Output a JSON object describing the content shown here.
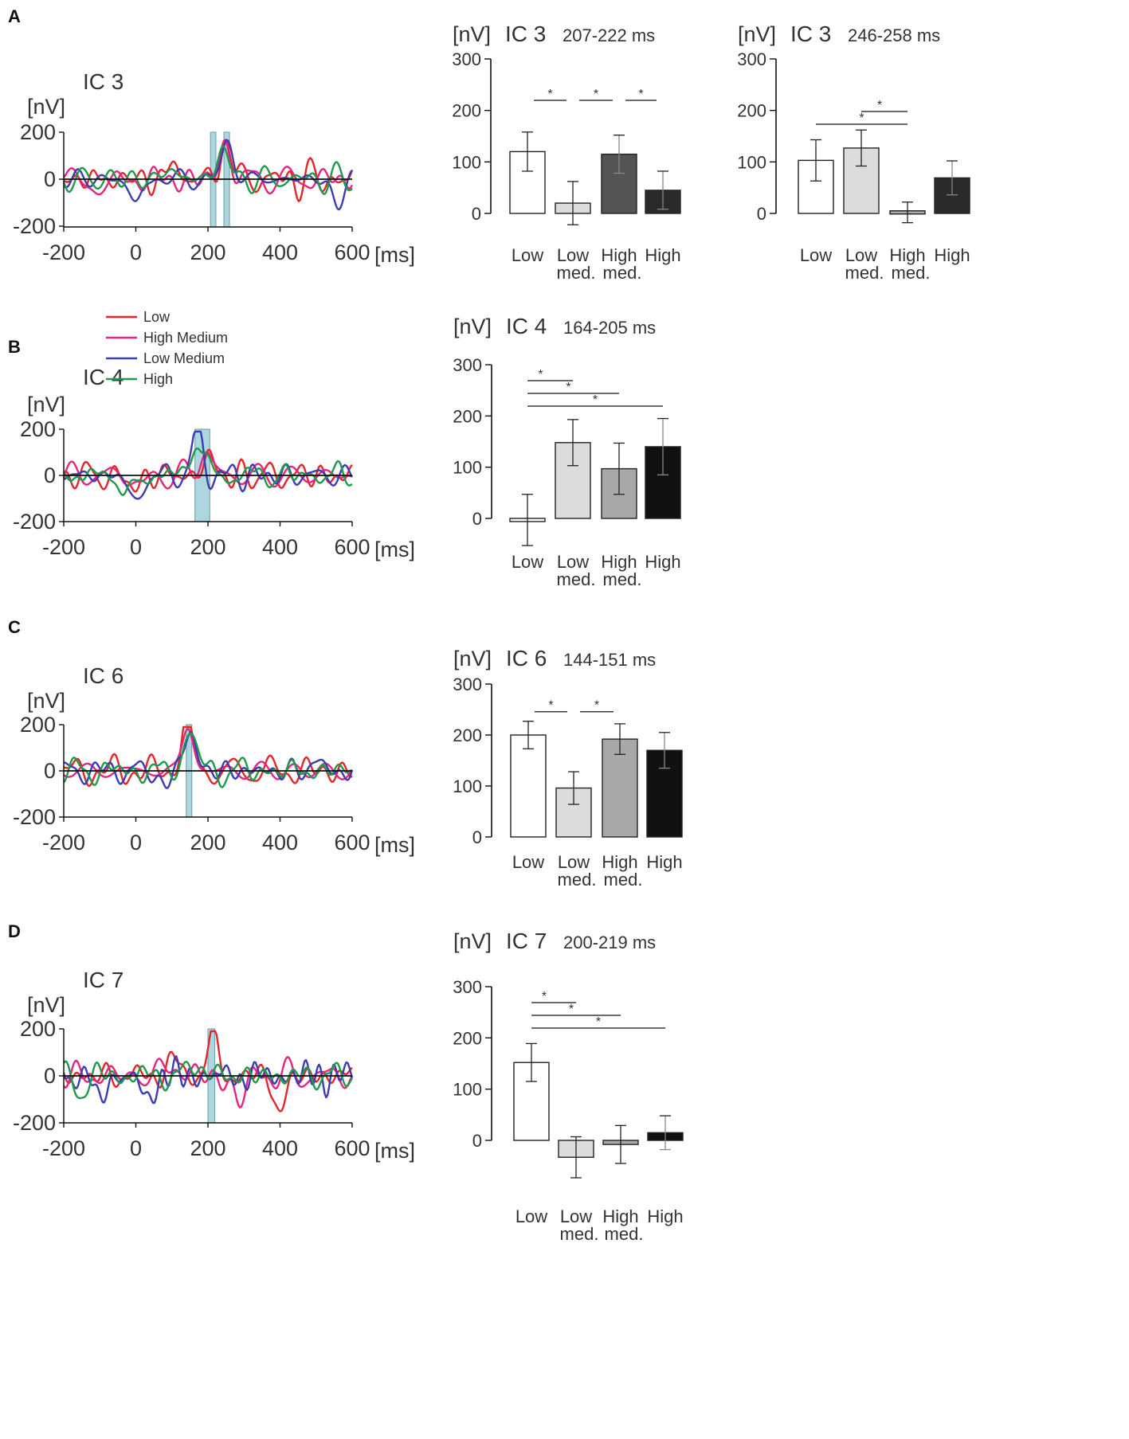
{
  "figure": {
    "panels": [
      {
        "letter": "A",
        "wave": "ic3",
        "bars": [
          "ic3a",
          "ic3b"
        ]
      },
      {
        "letter": "B",
        "wave": "ic4",
        "bars": [
          "ic4"
        ]
      },
      {
        "letter": "C",
        "wave": "ic6",
        "bars": [
          "ic6"
        ]
      },
      {
        "letter": "D",
        "wave": "ic7",
        "bars": [
          "ic7"
        ]
      }
    ]
  },
  "legend": {
    "items": [
      {
        "label": "Low",
        "color": "#e3262a"
      },
      {
        "label": "High Medium",
        "color": "#e6267e"
      },
      {
        "label": "Low Medium",
        "color": "#3c3cb4"
      },
      {
        "label": "High",
        "color": "#1f9a4c"
      }
    ]
  },
  "chart_data": [
    {
      "id": "ic3",
      "type": "line",
      "title": "IC 3",
      "ylabel": "[nV]",
      "xunit": "[ms]",
      "xlim": [
        -200,
        600
      ],
      "ylim": [
        -200,
        200
      ],
      "xticks": [
        -200,
        0,
        200,
        400,
        600
      ],
      "yticks": [
        200,
        0,
        -200
      ],
      "highlight_windows_ms": [
        [
          207,
          222
        ],
        [
          246,
          258
        ]
      ],
      "series": [
        {
          "name": "Low",
          "color": "#e3262a",
          "peaks": [
            [
              110,
              60
            ],
            [
              250,
              160
            ]
          ],
          "seed": 1
        },
        {
          "name": "High Medium",
          "color": "#e6267e",
          "peaks": [
            [
              -100,
              -60
            ],
            [
              250,
              150
            ]
          ],
          "seed": 2
        },
        {
          "name": "Low Medium",
          "color": "#3c3cb4",
          "peaks": [
            [
              0,
              -110
            ],
            [
              255,
              160
            ],
            [
              560,
              -110
            ]
          ],
          "seed": 3
        },
        {
          "name": "High",
          "color": "#1f9a4c",
          "peaks": [
            [
              100,
              50
            ],
            [
              240,
              140
            ]
          ],
          "seed": 4
        }
      ]
    },
    {
      "id": "ic4",
      "type": "line",
      "title": "IC 4",
      "ylabel": "[nV]",
      "xunit": "[ms]",
      "xlim": [
        -200,
        600
      ],
      "ylim": [
        -200,
        200
      ],
      "xticks": [
        -200,
        0,
        200,
        400,
        600
      ],
      "yticks": [
        200,
        0,
        -200
      ],
      "highlight_windows_ms": [
        [
          164,
          205
        ]
      ],
      "series": [
        {
          "name": "Low",
          "color": "#e3262a",
          "peaks": [
            [
              -10,
              -60
            ],
            [
              200,
              80
            ]
          ],
          "seed": 5
        },
        {
          "name": "High Medium",
          "color": "#e6267e",
          "peaks": [
            [
              20,
              -50
            ],
            [
              190,
              120
            ]
          ],
          "seed": 6
        },
        {
          "name": "Low Medium",
          "color": "#3c3cb4",
          "peaks": [
            [
              0,
              -130
            ],
            [
              170,
              180
            ]
          ],
          "seed": 7
        },
        {
          "name": "High",
          "color": "#1f9a4c",
          "peaks": [
            [
              -20,
              -100
            ],
            [
              170,
              170
            ]
          ],
          "seed": 8
        }
      ]
    },
    {
      "id": "ic6",
      "type": "line",
      "title": "IC 6",
      "ylabel": "[nV]",
      "xunit": "[ms]",
      "xlim": [
        -200,
        600
      ],
      "ylim": [
        -200,
        200
      ],
      "xticks": [
        -200,
        0,
        200,
        400,
        600
      ],
      "yticks": [
        200,
        0,
        -200
      ],
      "highlight_windows_ms": [
        [
          144,
          151
        ]
      ],
      "series": [
        {
          "name": "Low",
          "color": "#e3262a",
          "peaks": [
            [
              140,
              210
            ]
          ],
          "seed": 9
        },
        {
          "name": "High Medium",
          "color": "#e6267e",
          "peaks": [
            [
              145,
              195
            ]
          ],
          "seed": 10
        },
        {
          "name": "Low Medium",
          "color": "#3c3cb4",
          "peaks": [
            [
              80,
              -60
            ],
            [
              150,
              180
            ],
            [
              500,
              40
            ]
          ],
          "seed": 11
        },
        {
          "name": "High",
          "color": "#1f9a4c",
          "peaks": [
            [
              150,
              190
            ]
          ],
          "seed": 12
        }
      ]
    },
    {
      "id": "ic7",
      "type": "line",
      "title": "IC 7",
      "ylabel": "[nV]",
      "xunit": "[ms]",
      "xlim": [
        -200,
        600
      ],
      "ylim": [
        -200,
        200
      ],
      "xticks": [
        -200,
        0,
        200,
        400,
        600
      ],
      "yticks": [
        200,
        0,
        -200
      ],
      "highlight_windows_ms": [
        [
          200,
          219
        ]
      ],
      "series": [
        {
          "name": "Low",
          "color": "#e3262a",
          "peaks": [
            [
              210,
              160
            ],
            [
              400,
              -150
            ],
            [
              100,
              70
            ]
          ],
          "seed": 13
        },
        {
          "name": "High Medium",
          "color": "#e6267e",
          "peaks": [
            [
              280,
              -120
            ],
            [
              100,
              60
            ]
          ],
          "seed": 14
        },
        {
          "name": "Low Medium",
          "color": "#3c3cb4",
          "peaks": [
            [
              -100,
              -100
            ],
            [
              30,
              -110
            ]
          ],
          "seed": 15
        },
        {
          "name": "High",
          "color": "#1f9a4c",
          "peaks": [
            [
              170,
              60
            ],
            [
              -150,
              -60
            ]
          ],
          "seed": 16
        }
      ]
    },
    {
      "id": "ic3a",
      "type": "bar",
      "unit": "[nV]",
      "ic": "IC 3",
      "window": "207-222 ms",
      "ylim": [
        0,
        300
      ],
      "yticks": [
        0,
        100,
        200,
        300
      ],
      "categories": [
        [
          "Low"
        ],
        [
          "Low",
          "med."
        ],
        [
          "High",
          "med."
        ],
        [
          "High"
        ]
      ],
      "values": [
        120,
        20,
        115,
        45
      ],
      "errors": [
        38,
        42,
        37,
        37
      ],
      "fills": [
        "#ffffff",
        "#dcdcdc",
        "#545454",
        "#2a2a2a"
      ],
      "significance": [
        {
          "from": 0,
          "to": 1,
          "label": "*"
        },
        {
          "from": 1,
          "to": 2,
          "label": "*"
        },
        {
          "from": 2,
          "to": 3,
          "label": "*"
        }
      ]
    },
    {
      "id": "ic3b",
      "type": "bar",
      "unit": "[nV]",
      "ic": "IC 3",
      "window": "246-258 ms",
      "ylim": [
        0,
        300
      ],
      "yticks": [
        0,
        100,
        200,
        300
      ],
      "categories": [
        [
          "Low"
        ],
        [
          "Low",
          "med."
        ],
        [
          "High",
          "med."
        ],
        [
          "High"
        ]
      ],
      "values": [
        103,
        127,
        2,
        69
      ],
      "errors": [
        40,
        35,
        20,
        33
      ],
      "fills": [
        "#ffffff",
        "#dcdcdc",
        "#a8a8a8",
        "#2a2a2a"
      ],
      "significance": [
        {
          "from": 1,
          "to": 2,
          "label": "*"
        },
        {
          "from": 0,
          "to": 2,
          "label": "*"
        }
      ]
    },
    {
      "id": "ic4",
      "type": "bar",
      "unit": "[nV]",
      "ic": "IC 4",
      "window": "164-205 ms",
      "ylim": [
        0,
        300
      ],
      "yticks": [
        0,
        100,
        200,
        300
      ],
      "categories": [
        [
          "Low"
        ],
        [
          "Low",
          "med."
        ],
        [
          "High",
          "med."
        ],
        [
          "High"
        ]
      ],
      "values": [
        -3,
        148,
        97,
        140
      ],
      "errors": [
        50,
        45,
        50,
        55
      ],
      "fills": [
        "#ffffff",
        "#dcdcdc",
        "#a8a8a8",
        "#111111"
      ],
      "significance": [
        {
          "from": 0,
          "to": 1,
          "label": "*"
        },
        {
          "from": 0,
          "to": 2,
          "label": "*"
        },
        {
          "from": 0,
          "to": 3,
          "label": "*"
        }
      ]
    },
    {
      "id": "ic6",
      "type": "bar",
      "unit": "[nV]",
      "ic": "IC 6",
      "window": "144-151 ms",
      "ylim": [
        0,
        300
      ],
      "yticks": [
        0,
        100,
        200,
        300
      ],
      "categories": [
        [
          "Low"
        ],
        [
          "Low",
          "med."
        ],
        [
          "High",
          "med."
        ],
        [
          "High"
        ]
      ],
      "values": [
        200,
        96,
        192,
        170
      ],
      "errors": [
        27,
        32,
        30,
        35
      ],
      "fills": [
        "#ffffff",
        "#dcdcdc",
        "#a8a8a8",
        "#111111"
      ],
      "significance": [
        {
          "from": 0,
          "to": 1,
          "label": "*"
        },
        {
          "from": 1,
          "to": 2,
          "label": "*"
        }
      ]
    },
    {
      "id": "ic7",
      "type": "bar",
      "unit": "[nV]",
      "ic": "IC 7",
      "window": "200-219 ms",
      "ylim": [
        0,
        300
      ],
      "yticks": [
        0,
        100,
        200,
        300
      ],
      "categories": [
        [
          "Low"
        ],
        [
          "Low",
          "med."
        ],
        [
          "High",
          "med."
        ],
        [
          "High"
        ]
      ],
      "values": [
        152,
        -33,
        -8,
        15
      ],
      "errors": [
        37,
        40,
        37,
        33
      ],
      "fills": [
        "#ffffff",
        "#dcdcdc",
        "#a8a8a8",
        "#111111"
      ],
      "significance": [
        {
          "from": 0,
          "to": 1,
          "label": "*"
        },
        {
          "from": 0,
          "to": 2,
          "label": "*"
        },
        {
          "from": 0,
          "to": 3,
          "label": "*"
        }
      ]
    }
  ]
}
